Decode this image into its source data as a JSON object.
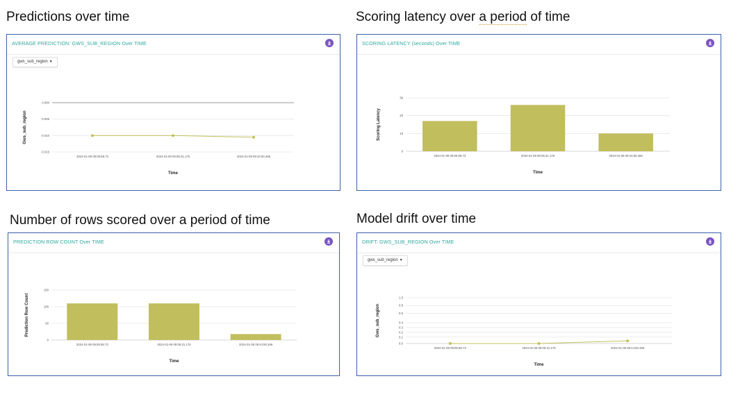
{
  "sections": [
    {
      "heading": "Predictions over time",
      "panel_title": "AVERAGE PREDICTION: GWS_SUB_REGION Over TIME",
      "dropdown": "gws_sub_region",
      "chart_data": {
        "type": "line",
        "categories": [
          "2024-01-08 09:05:58.73",
          "2024-01-08 09:05:31.175",
          "2024-01-08 09:44:50.466"
        ],
        "series": [
          {
            "values": [
              -0.01,
              -0.01,
              -0.0105
            ]
          }
        ],
        "yticks": [
          "0.000",
          "-0.005",
          "-0.010",
          "-0.015"
        ],
        "ylim": [
          -0.015,
          0.0
        ],
        "xlabel": "Time",
        "ylabel": "Gws_sub_region",
        "colors": {
          "series": "#c3c05d"
        }
      }
    },
    {
      "heading": "Scoring latency over a period of time",
      "panel_title": "SCORING LATENCY (seconds) Over TIME",
      "chart_data": {
        "type": "bar",
        "categories": [
          "2024-01-08 09:05:58.73",
          "2024-01-08 09:05:31.175",
          "2024-01-08 09:44:50.466"
        ],
        "values": [
          17,
          26,
          10
        ],
        "yticks": [
          "30",
          "20",
          "10",
          "0"
        ],
        "ylim": [
          0,
          30
        ],
        "xlabel": "Time",
        "ylabel": "Scoring Latency",
        "colors": {
          "bar": "#c1be5e"
        }
      }
    },
    {
      "heading": "Number of rows scored over a period of time",
      "panel_title": "PREDICTION ROW COUNT Over TIME",
      "chart_data": {
        "type": "bar",
        "categories": [
          "2024-01-08 09:05:58.73",
          "2024-01-08 09:05:31.175",
          "2024-01-08 09:44:50.466"
        ],
        "values": [
          110,
          110,
          18
        ],
        "yticks": [
          "150",
          "100",
          "50",
          "0"
        ],
        "ylim": [
          0,
          150
        ],
        "xlabel": "Time",
        "ylabel": "Prediction Row Count",
        "colors": {
          "bar": "#c1be5e"
        }
      }
    },
    {
      "heading": "Model drift over time",
      "panel_title": "DRIFT: GWS_SUB_REGION Over TIME",
      "dropdown": "gws_sub_region",
      "chart_data": {
        "type": "line",
        "categories": [
          "2024-01-08 09:05:58.73",
          "2024-01-08 09:05:31.175",
          "2024-01-08 09:44:50.466"
        ],
        "series": [
          {
            "values": [
              0.0,
              0.0,
              0.04
            ]
          }
        ],
        "yticks": [
          "1.0",
          "0.8",
          "0.6",
          "0.4",
          "0.3",
          "0.2",
          "0.1",
          "0.0"
        ],
        "ylim": [
          0,
          1.0
        ],
        "xlabel": "Time",
        "ylabel": "Gws_sub_region",
        "colors": {
          "series": "#c3c05d"
        }
      }
    }
  ]
}
